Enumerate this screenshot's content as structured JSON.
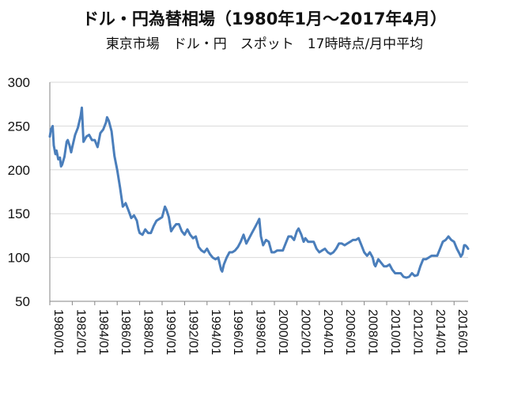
{
  "title": "ドル・円為替相場（1980年1月〜2017年4月）",
  "subtitle": "東京市場　ドル・円　スポット　17時時点/月中平均",
  "colors": {
    "line": "#4A7EBB",
    "grid": "#d9d9d9",
    "axis": "#868686"
  },
  "chart_data": {
    "type": "line",
    "ylim": [
      50,
      300
    ],
    "yticks": [
      50,
      100,
      150,
      200,
      250,
      300
    ],
    "xlim": [
      1980.0,
      2017.25
    ],
    "xtick_labels": [
      "1980/01",
      "1982/01",
      "1984/01",
      "1986/01",
      "1988/01",
      "1990/01",
      "1992/01",
      "1994/01",
      "1996/01",
      "1998/01",
      "2000/01",
      "2002/01",
      "2004/01",
      "2006/01",
      "2008/01",
      "2010/01",
      "2012/01",
      "2014/01",
      "2016/01"
    ],
    "xtick_values": [
      1980,
      1982,
      1984,
      1986,
      1988,
      1990,
      1992,
      1994,
      1996,
      1998,
      2000,
      2002,
      2004,
      2006,
      2008,
      2010,
      2012,
      2014,
      2016
    ],
    "grid": "horizontal",
    "series": [
      {
        "points": [
          [
            1980.0,
            238
          ],
          [
            1980.1,
            246
          ],
          [
            1980.25,
            250
          ],
          [
            1980.35,
            228
          ],
          [
            1980.5,
            218
          ],
          [
            1980.6,
            222
          ],
          [
            1980.75,
            212
          ],
          [
            1980.9,
            214
          ],
          [
            1981.0,
            204
          ],
          [
            1981.1,
            206
          ],
          [
            1981.3,
            215
          ],
          [
            1981.5,
            232
          ],
          [
            1981.6,
            234
          ],
          [
            1981.75,
            228
          ],
          [
            1981.9,
            220
          ],
          [
            1982.0,
            226
          ],
          [
            1982.25,
            240
          ],
          [
            1982.5,
            248
          ],
          [
            1982.75,
            262
          ],
          [
            1982.85,
            271
          ],
          [
            1983.0,
            232
          ],
          [
            1983.25,
            238
          ],
          [
            1983.5,
            240
          ],
          [
            1983.75,
            234
          ],
          [
            1984.0,
            234
          ],
          [
            1984.25,
            226
          ],
          [
            1984.5,
            242
          ],
          [
            1984.75,
            246
          ],
          [
            1985.0,
            254
          ],
          [
            1985.1,
            260
          ],
          [
            1985.25,
            256
          ],
          [
            1985.5,
            244
          ],
          [
            1985.75,
            216
          ],
          [
            1986.0,
            200
          ],
          [
            1986.25,
            180
          ],
          [
            1986.5,
            158
          ],
          [
            1986.75,
            162
          ],
          [
            1987.0,
            154
          ],
          [
            1987.25,
            145
          ],
          [
            1987.5,
            148
          ],
          [
            1987.75,
            142
          ],
          [
            1987.9,
            132
          ],
          [
            1988.0,
            128
          ],
          [
            1988.25,
            126
          ],
          [
            1988.5,
            132
          ],
          [
            1988.75,
            128
          ],
          [
            1989.0,
            128
          ],
          [
            1989.25,
            136
          ],
          [
            1989.5,
            142
          ],
          [
            1989.75,
            144
          ],
          [
            1990.0,
            146
          ],
          [
            1990.25,
            158
          ],
          [
            1990.4,
            154
          ],
          [
            1990.6,
            146
          ],
          [
            1990.8,
            130
          ],
          [
            1991.0,
            134
          ],
          [
            1991.25,
            138
          ],
          [
            1991.5,
            138
          ],
          [
            1991.75,
            130
          ],
          [
            1992.0,
            126
          ],
          [
            1992.25,
            132
          ],
          [
            1992.5,
            126
          ],
          [
            1992.75,
            122
          ],
          [
            1993.0,
            124
          ],
          [
            1993.25,
            112
          ],
          [
            1993.5,
            108
          ],
          [
            1993.75,
            106
          ],
          [
            1994.0,
            110
          ],
          [
            1994.25,
            104
          ],
          [
            1994.5,
            100
          ],
          [
            1994.75,
            98
          ],
          [
            1995.0,
            100
          ],
          [
            1995.25,
            86
          ],
          [
            1995.35,
            84
          ],
          [
            1995.5,
            92
          ],
          [
            1995.75,
            100
          ],
          [
            1996.0,
            106
          ],
          [
            1996.25,
            106
          ],
          [
            1996.5,
            108
          ],
          [
            1996.75,
            112
          ],
          [
            1997.0,
            118
          ],
          [
            1997.25,
            126
          ],
          [
            1997.5,
            116
          ],
          [
            1997.75,
            122
          ],
          [
            1998.0,
            128
          ],
          [
            1998.25,
            134
          ],
          [
            1998.5,
            140
          ],
          [
            1998.65,
            144
          ],
          [
            1998.8,
            124
          ],
          [
            1999.0,
            114
          ],
          [
            1999.25,
            120
          ],
          [
            1999.5,
            118
          ],
          [
            1999.75,
            106
          ],
          [
            2000.0,
            106
          ],
          [
            2000.25,
            108
          ],
          [
            2000.5,
            108
          ],
          [
            2000.75,
            108
          ],
          [
            2001.0,
            116
          ],
          [
            2001.25,
            124
          ],
          [
            2001.5,
            124
          ],
          [
            2001.75,
            120
          ],
          [
            2002.0,
            130
          ],
          [
            2002.15,
            133
          ],
          [
            2002.4,
            126
          ],
          [
            2002.6,
            118
          ],
          [
            2002.75,
            122
          ],
          [
            2003.0,
            118
          ],
          [
            2003.25,
            118
          ],
          [
            2003.5,
            118
          ],
          [
            2003.75,
            110
          ],
          [
            2004.0,
            106
          ],
          [
            2004.25,
            108
          ],
          [
            2004.5,
            110
          ],
          [
            2004.75,
            106
          ],
          [
            2005.0,
            104
          ],
          [
            2005.25,
            106
          ],
          [
            2005.5,
            110
          ],
          [
            2005.75,
            116
          ],
          [
            2006.0,
            116
          ],
          [
            2006.25,
            114
          ],
          [
            2006.5,
            116
          ],
          [
            2006.75,
            118
          ],
          [
            2007.0,
            120
          ],
          [
            2007.25,
            120
          ],
          [
            2007.5,
            122
          ],
          [
            2007.75,
            114
          ],
          [
            2008.0,
            106
          ],
          [
            2008.25,
            102
          ],
          [
            2008.5,
            106
          ],
          [
            2008.75,
            100
          ],
          [
            2008.9,
            92
          ],
          [
            2009.0,
            90
          ],
          [
            2009.25,
            98
          ],
          [
            2009.5,
            94
          ],
          [
            2009.75,
            90
          ],
          [
            2010.0,
            90
          ],
          [
            2010.25,
            92
          ],
          [
            2010.5,
            86
          ],
          [
            2010.75,
            82
          ],
          [
            2011.0,
            82
          ],
          [
            2011.25,
            82
          ],
          [
            2011.5,
            78
          ],
          [
            2011.75,
            77
          ],
          [
            2012.0,
            78
          ],
          [
            2012.25,
            82
          ],
          [
            2012.5,
            79
          ],
          [
            2012.75,
            80
          ],
          [
            2013.0,
            90
          ],
          [
            2013.25,
            98
          ],
          [
            2013.5,
            98
          ],
          [
            2013.75,
            100
          ],
          [
            2014.0,
            102
          ],
          [
            2014.25,
            102
          ],
          [
            2014.5,
            102
          ],
          [
            2014.75,
            110
          ],
          [
            2015.0,
            118
          ],
          [
            2015.25,
            120
          ],
          [
            2015.5,
            124
          ],
          [
            2015.75,
            120
          ],
          [
            2016.0,
            118
          ],
          [
            2016.25,
            110
          ],
          [
            2016.5,
            104
          ],
          [
            2016.6,
            101
          ],
          [
            2016.75,
            104
          ],
          [
            2016.9,
            114
          ],
          [
            2017.0,
            114
          ],
          [
            2017.15,
            112
          ],
          [
            2017.25,
            110
          ]
        ]
      }
    ]
  }
}
